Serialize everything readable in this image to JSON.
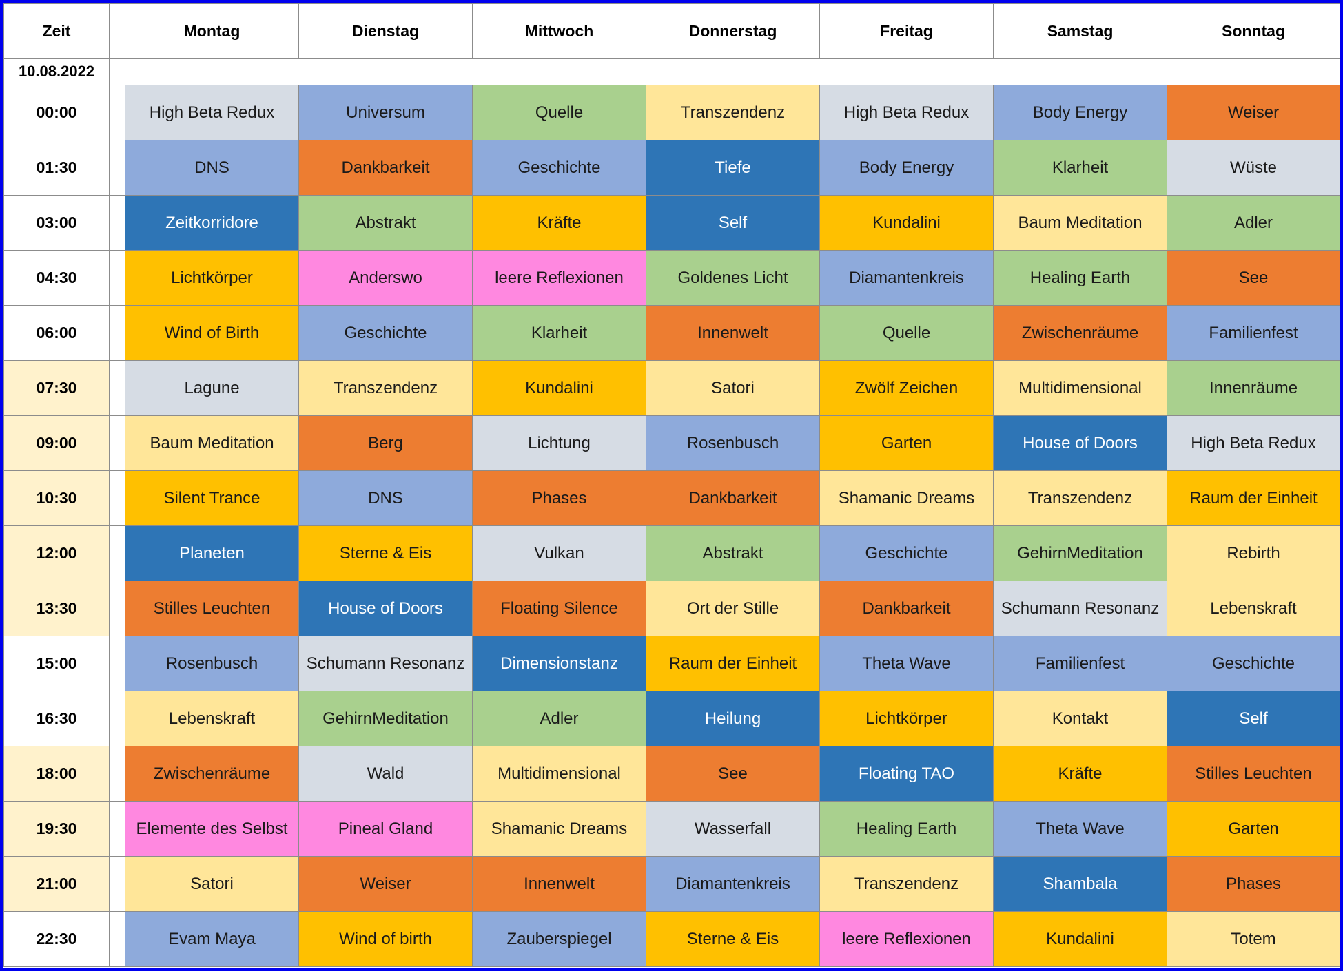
{
  "schedule": {
    "time_header": "Zeit",
    "date": "10.08.2022",
    "days": [
      "Montag",
      "Dienstag",
      "Mittwoch",
      "Donnerstag",
      "Freitag",
      "Samstag",
      "Sonntag"
    ],
    "palette": {
      "gray": "#d6dce4",
      "blue": "#8eaadb",
      "green": "#a9d08e",
      "yellow": "#ffe699",
      "orange": "#ed7d31",
      "gold": "#ffc000",
      "darkblue": "#2e75b6",
      "pink": "#ff88e0",
      "white": "#ffffff",
      "cream": "#fff2cc"
    },
    "rows": [
      {
        "time": "00:00",
        "time_bg": "white",
        "cells": [
          {
            "text": "High Beta Redux",
            "color": "gray"
          },
          {
            "text": "Universum",
            "color": "blue"
          },
          {
            "text": "Quelle",
            "color": "green"
          },
          {
            "text": "Transzendenz",
            "color": "yellow"
          },
          {
            "text": "High Beta Redux",
            "color": "gray"
          },
          {
            "text": "Body Energy",
            "color": "blue"
          },
          {
            "text": "Weiser",
            "color": "orange"
          }
        ]
      },
      {
        "time": "01:30",
        "time_bg": "white",
        "cells": [
          {
            "text": "DNS",
            "color": "blue"
          },
          {
            "text": "Dankbarkeit",
            "color": "orange"
          },
          {
            "text": "Geschichte",
            "color": "blue"
          },
          {
            "text": "Tiefe",
            "color": "darkblue"
          },
          {
            "text": "Body Energy",
            "color": "blue"
          },
          {
            "text": "Klarheit",
            "color": "green"
          },
          {
            "text": "Wüste",
            "color": "gray"
          }
        ]
      },
      {
        "time": "03:00",
        "time_bg": "white",
        "cells": [
          {
            "text": "Zeitkorridore",
            "color": "darkblue"
          },
          {
            "text": "Abstrakt",
            "color": "green"
          },
          {
            "text": "Kräfte",
            "color": "gold"
          },
          {
            "text": "Self",
            "color": "darkblue"
          },
          {
            "text": "Kundalini",
            "color": "gold"
          },
          {
            "text": "Baum Meditation",
            "color": "yellow"
          },
          {
            "text": "Adler",
            "color": "green"
          }
        ]
      },
      {
        "time": "04:30",
        "time_bg": "white",
        "cells": [
          {
            "text": "Lichtkörper",
            "color": "gold"
          },
          {
            "text": "Anderswo",
            "color": "pink"
          },
          {
            "text": "leere Reflexionen",
            "color": "pink"
          },
          {
            "text": "Goldenes Licht",
            "color": "green"
          },
          {
            "text": "Diamantenkreis",
            "color": "blue"
          },
          {
            "text": "Healing Earth",
            "color": "green"
          },
          {
            "text": "See",
            "color": "orange"
          }
        ]
      },
      {
        "time": "06:00",
        "time_bg": "white",
        "cells": [
          {
            "text": "Wind of Birth",
            "color": "gold"
          },
          {
            "text": "Geschichte",
            "color": "blue"
          },
          {
            "text": "Klarheit",
            "color": "green"
          },
          {
            "text": "Innenwelt",
            "color": "orange"
          },
          {
            "text": "Quelle",
            "color": "green"
          },
          {
            "text": "Zwischenräume",
            "color": "orange"
          },
          {
            "text": "Familienfest",
            "color": "blue"
          }
        ]
      },
      {
        "time": "07:30",
        "time_bg": "cream",
        "cells": [
          {
            "text": "Lagune",
            "color": "gray"
          },
          {
            "text": "Transzendenz",
            "color": "yellow"
          },
          {
            "text": "Kundalini",
            "color": "gold"
          },
          {
            "text": "Satori",
            "color": "yellow"
          },
          {
            "text": "Zwölf Zeichen",
            "color": "gold"
          },
          {
            "text": "Multidimensional",
            "color": "yellow"
          },
          {
            "text": "Innenräume",
            "color": "green"
          }
        ]
      },
      {
        "time": "09:00",
        "time_bg": "cream",
        "cells": [
          {
            "text": "Baum Meditation",
            "color": "yellow"
          },
          {
            "text": "Berg",
            "color": "orange"
          },
          {
            "text": "Lichtung",
            "color": "gray"
          },
          {
            "text": "Rosenbusch",
            "color": "blue"
          },
          {
            "text": "Garten",
            "color": "gold"
          },
          {
            "text": "House of Doors",
            "color": "darkblue"
          },
          {
            "text": "High Beta Redux",
            "color": "gray"
          }
        ]
      },
      {
        "time": "10:30",
        "time_bg": "cream",
        "cells": [
          {
            "text": "Silent Trance",
            "color": "gold"
          },
          {
            "text": "DNS",
            "color": "blue"
          },
          {
            "text": "Phases",
            "color": "orange"
          },
          {
            "text": "Dankbarkeit",
            "color": "orange"
          },
          {
            "text": "Shamanic Dreams",
            "color": "yellow"
          },
          {
            "text": "Transzendenz",
            "color": "yellow"
          },
          {
            "text": "Raum der Einheit",
            "color": "gold"
          }
        ]
      },
      {
        "time": "12:00",
        "time_bg": "cream",
        "cells": [
          {
            "text": "Planeten",
            "color": "darkblue"
          },
          {
            "text": "Sterne & Eis",
            "color": "gold"
          },
          {
            "text": "Vulkan",
            "color": "gray"
          },
          {
            "text": "Abstrakt",
            "color": "green"
          },
          {
            "text": "Geschichte",
            "color": "blue"
          },
          {
            "text": "GehirnMeditation",
            "color": "green"
          },
          {
            "text": "Rebirth",
            "color": "yellow"
          }
        ]
      },
      {
        "time": "13:30",
        "time_bg": "cream",
        "cells": [
          {
            "text": "Stilles Leuchten",
            "color": "orange"
          },
          {
            "text": "House of Doors",
            "color": "darkblue"
          },
          {
            "text": "Floating Silence",
            "color": "orange"
          },
          {
            "text": "Ort der Stille",
            "color": "yellow"
          },
          {
            "text": "Dankbarkeit",
            "color": "orange"
          },
          {
            "text": "Schumann Resonanz",
            "color": "gray"
          },
          {
            "text": "Lebenskraft",
            "color": "yellow"
          }
        ]
      },
      {
        "time": "15:00",
        "time_bg": "white",
        "cells": [
          {
            "text": "Rosenbusch",
            "color": "blue"
          },
          {
            "text": "Schumann Resonanz",
            "color": "gray"
          },
          {
            "text": "Dimensionstanz",
            "color": "darkblue"
          },
          {
            "text": "Raum der Einheit",
            "color": "gold"
          },
          {
            "text": "Theta Wave",
            "color": "blue"
          },
          {
            "text": "Familienfest",
            "color": "blue"
          },
          {
            "text": "Geschichte",
            "color": "blue"
          }
        ]
      },
      {
        "time": "16:30",
        "time_bg": "white",
        "cells": [
          {
            "text": "Lebenskraft",
            "color": "yellow"
          },
          {
            "text": "GehirnMeditation",
            "color": "green"
          },
          {
            "text": "Adler",
            "color": "green"
          },
          {
            "text": "Heilung",
            "color": "darkblue"
          },
          {
            "text": "Lichtkörper",
            "color": "gold"
          },
          {
            "text": "Kontakt",
            "color": "yellow"
          },
          {
            "text": "Self",
            "color": "darkblue"
          }
        ]
      },
      {
        "time": "18:00",
        "time_bg": "cream",
        "cells": [
          {
            "text": "Zwischenräume",
            "color": "orange"
          },
          {
            "text": "Wald",
            "color": "gray"
          },
          {
            "text": "Multidimensional",
            "color": "yellow"
          },
          {
            "text": "See",
            "color": "orange"
          },
          {
            "text": "Floating TAO",
            "color": "darkblue"
          },
          {
            "text": "Kräfte",
            "color": "gold"
          },
          {
            "text": "Stilles Leuchten",
            "color": "orange"
          }
        ]
      },
      {
        "time": "19:30",
        "time_bg": "cream",
        "cells": [
          {
            "text": "Elemente des Selbst",
            "color": "pink"
          },
          {
            "text": "Pineal Gland",
            "color": "pink"
          },
          {
            "text": "Shamanic Dreams",
            "color": "yellow"
          },
          {
            "text": "Wasserfall",
            "color": "gray"
          },
          {
            "text": "Healing Earth",
            "color": "green"
          },
          {
            "text": "Theta Wave",
            "color": "blue"
          },
          {
            "text": "Garten",
            "color": "gold"
          }
        ]
      },
      {
        "time": "21:00",
        "time_bg": "cream",
        "cells": [
          {
            "text": "Satori",
            "color": "yellow"
          },
          {
            "text": "Weiser",
            "color": "orange"
          },
          {
            "text": "Innenwelt",
            "color": "orange"
          },
          {
            "text": "Diamantenkreis",
            "color": "blue"
          },
          {
            "text": "Transzendenz",
            "color": "yellow"
          },
          {
            "text": "Shambala",
            "color": "darkblue"
          },
          {
            "text": "Phases",
            "color": "orange"
          }
        ]
      },
      {
        "time": "22:30",
        "time_bg": "white",
        "cells": [
          {
            "text": "Evam Maya",
            "color": "blue"
          },
          {
            "text": "Wind of birth",
            "color": "gold"
          },
          {
            "text": "Zauberspiegel",
            "color": "blue"
          },
          {
            "text": "Sterne & Eis",
            "color": "gold"
          },
          {
            "text": "leere Reflexionen",
            "color": "pink"
          },
          {
            "text": "Kundalini",
            "color": "gold"
          },
          {
            "text": "Totem",
            "color": "yellow"
          }
        ]
      }
    ]
  }
}
